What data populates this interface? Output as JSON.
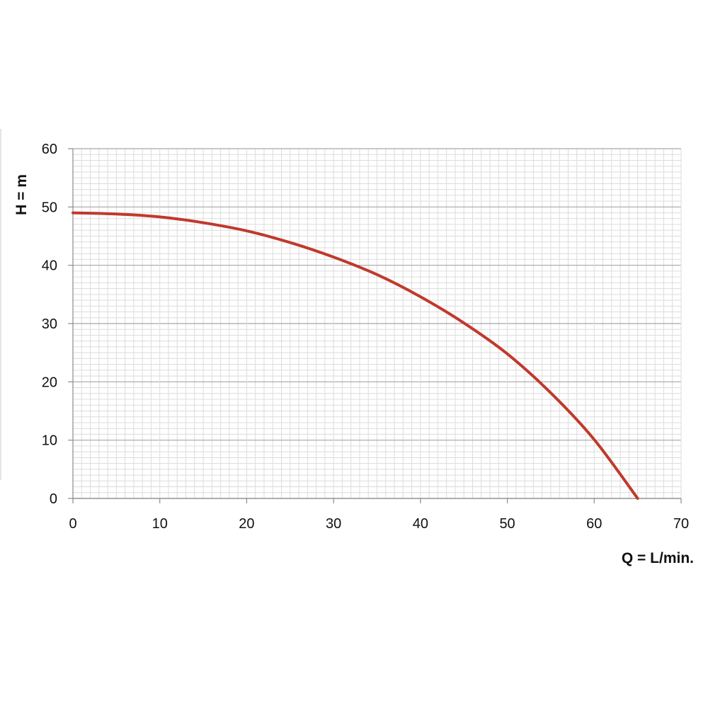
{
  "chart_data": {
    "type": "line",
    "title": "",
    "xlabel": "Q = L/min.",
    "ylabel": "H = m",
    "xlim": [
      0,
      70
    ],
    "ylim": [
      0,
      60
    ],
    "x_ticks": [
      0,
      10,
      20,
      30,
      40,
      50,
      60,
      70
    ],
    "y_ticks": [
      0,
      10,
      20,
      30,
      40,
      50,
      60
    ],
    "x_tick_labels": [
      "0",
      "10",
      "20",
      "30",
      "40",
      "50",
      "60",
      "70"
    ],
    "y_tick_labels": [
      "0",
      "10",
      "20",
      "30",
      "40",
      "50",
      "60"
    ],
    "grid": true,
    "legend": "none",
    "series": [
      {
        "color": "#c0392b",
        "x": [
          0,
          5,
          10,
          15,
          20,
          25,
          30,
          35,
          40,
          45,
          50,
          55,
          60,
          65
        ],
        "y": [
          49,
          48.8,
          48.3,
          47.3,
          45.9,
          43.9,
          41.4,
          38.4,
          34.6,
          30.1,
          24.8,
          18.1,
          10.1,
          0
        ]
      }
    ]
  },
  "colors": {
    "major_grid": "#a6a6a6",
    "minor_grid": "#dcdcdc",
    "curve": "#c0392b"
  }
}
